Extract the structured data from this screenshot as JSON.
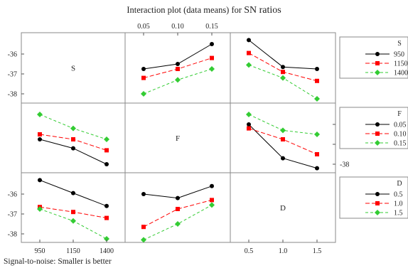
{
  "chart_data": {
    "type": "line",
    "title_main": "Interaction plot (data means) for",
    "title_suffix": "SN ratios",
    "footnote": "Signal-to-noise: Smaller is better",
    "factors": [
      "S",
      "F",
      "D"
    ],
    "levels": {
      "S": [
        "950",
        "1150",
        "1400"
      ],
      "F": [
        "0.05",
        "0.10",
        "0.15"
      ],
      "D": [
        "0.5",
        "1.0",
        "1.5"
      ]
    },
    "tick_labels": {
      "S": [
        "950",
        "1150",
        "1400"
      ],
      "F": [
        "0.05",
        "0.10",
        "0.15"
      ],
      "D": [
        "0.5",
        "1.0",
        "1.5"
      ]
    },
    "y_ticks": [
      -36,
      -37,
      -38
    ],
    "y_tick_labels": [
      "-36",
      "-37",
      "-38"
    ],
    "ylim": [
      -38.4,
      -35.0
    ],
    "colors": [
      "#000000",
      "#ff0000",
      "#33cc33"
    ],
    "markers": [
      "circle",
      "square",
      "diamond"
    ],
    "legends": [
      {
        "title": "S",
        "entries": [
          "950",
          "1150",
          "1400"
        ]
      },
      {
        "title": "F",
        "entries": [
          "0.05",
          "0.10",
          "0.15"
        ]
      },
      {
        "title": "D",
        "entries": [
          "0.5",
          "1.0",
          "1.5"
        ]
      }
    ],
    "panels": [
      {
        "row": "S",
        "col": "F",
        "series": [
          {
            "name": "950",
            "values": [
              -36.75,
              -36.5,
              -35.5
            ]
          },
          {
            "name": "1150",
            "values": [
              -37.2,
              -36.75,
              -36.2
            ]
          },
          {
            "name": "1400",
            "values": [
              -38.0,
              -37.3,
              -36.75
            ]
          }
        ]
      },
      {
        "row": "S",
        "col": "D",
        "series": [
          {
            "name": "950",
            "values": [
              -35.3,
              -36.65,
              -36.75
            ]
          },
          {
            "name": "1150",
            "values": [
              -35.95,
              -36.9,
              -37.35
            ]
          },
          {
            "name": "1400",
            "values": [
              -36.55,
              -37.2,
              -38.25
            ]
          }
        ]
      },
      {
        "row": "F",
        "col": "S",
        "series": [
          {
            "name": "0.05",
            "values": [
              -36.75,
              -37.2,
              -38.0
            ]
          },
          {
            "name": "0.10",
            "values": [
              -36.5,
              -36.75,
              -37.3
            ]
          },
          {
            "name": "0.15",
            "values": [
              -35.5,
              -36.2,
              -36.75
            ]
          }
        ]
      },
      {
        "row": "F",
        "col": "D",
        "series": [
          {
            "name": "0.05",
            "values": [
              -36.0,
              -37.7,
              -38.2
            ]
          },
          {
            "name": "0.10",
            "values": [
              -36.2,
              -36.75,
              -37.5
            ]
          },
          {
            "name": "0.15",
            "values": [
              -35.5,
              -36.3,
              -36.5
            ]
          }
        ]
      },
      {
        "row": "D",
        "col": "S",
        "series": [
          {
            "name": "0.5",
            "values": [
              -35.3,
              -35.95,
              -36.6
            ]
          },
          {
            "name": "1.0",
            "values": [
              -36.65,
              -36.9,
              -37.2
            ]
          },
          {
            "name": "1.5",
            "values": [
              -36.75,
              -37.35,
              -38.25
            ]
          }
        ]
      },
      {
        "row": "D",
        "col": "F",
        "series": [
          {
            "name": "0.5",
            "values": [
              -36.0,
              -36.2,
              -35.6
            ]
          },
          {
            "name": "1.0",
            "values": [
              -37.65,
              -36.75,
              -36.3
            ]
          },
          {
            "name": "1.5",
            "values": [
              -38.3,
              -37.5,
              -36.55
            ]
          }
        ]
      }
    ]
  }
}
